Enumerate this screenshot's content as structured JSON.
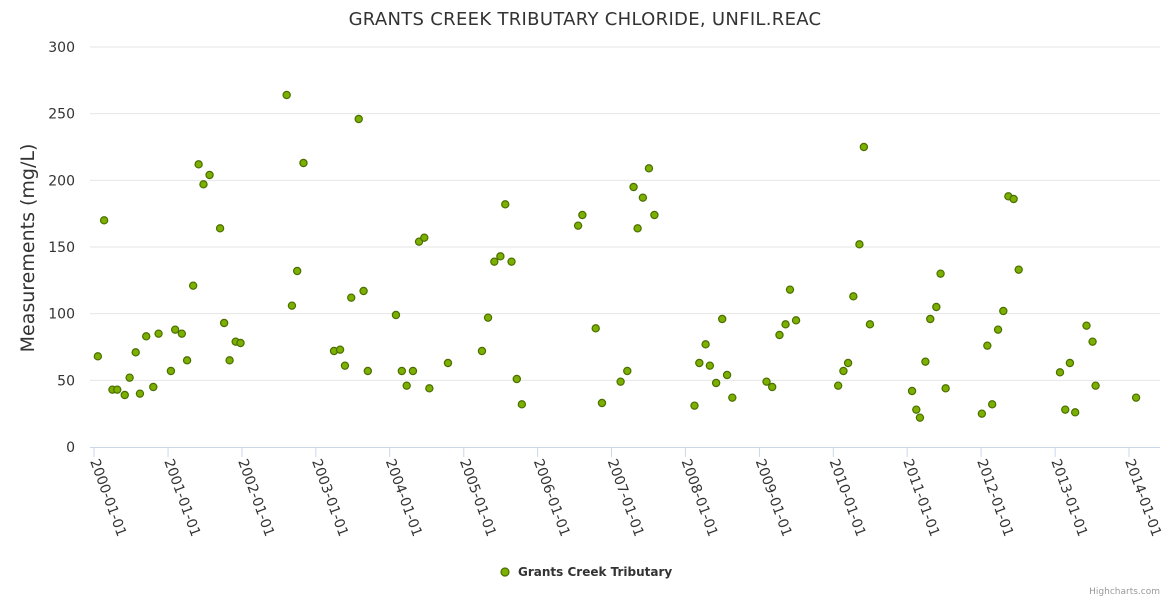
{
  "chart_data": {
    "type": "scatter",
    "title": "GRANTS CREEK TRIBUTARY CHLORIDE, UNFIL.REAC",
    "ylabel": "Measurements (mg/L)",
    "xlabel": "",
    "ylim": [
      0,
      300
    ],
    "yticks": [
      "0",
      "50",
      "100",
      "150",
      "200",
      "250",
      "300"
    ],
    "xticks": [
      "2000-01-01",
      "2001-01-01",
      "2002-01-01",
      "2003-01-01",
      "2004-01-01",
      "2005-01-01",
      "2006-01-01",
      "2007-01-01",
      "2008-01-01",
      "2009-01-01",
      "2010-01-01",
      "2011-01-01",
      "2012-01-01",
      "2013-01-01",
      "2014-01-01"
    ],
    "grid": true,
    "legend_position": "bottom-center",
    "colors": {
      "marker_fill": "#7cb000",
      "marker_stroke": "#4a6e00"
    },
    "series": [
      {
        "name": "Grants Creek Tributary",
        "points": [
          [
            "2000-01-20",
            68
          ],
          [
            "2000-02-20",
            170
          ],
          [
            "2000-04-01",
            43
          ],
          [
            "2000-04-25",
            43
          ],
          [
            "2000-06-01",
            39
          ],
          [
            "2000-06-25",
            52
          ],
          [
            "2000-07-25",
            71
          ],
          [
            "2000-08-15",
            40
          ],
          [
            "2000-09-15",
            83
          ],
          [
            "2000-10-20",
            45
          ],
          [
            "2000-11-15",
            85
          ],
          [
            "2001-01-15",
            57
          ],
          [
            "2001-02-05",
            88
          ],
          [
            "2001-03-10",
            85
          ],
          [
            "2001-04-05",
            65
          ],
          [
            "2001-05-05",
            121
          ],
          [
            "2001-06-01",
            212
          ],
          [
            "2001-06-25",
            197
          ],
          [
            "2001-07-25",
            204
          ],
          [
            "2001-09-15",
            164
          ],
          [
            "2001-10-05",
            93
          ],
          [
            "2001-11-01",
            65
          ],
          [
            "2001-12-01",
            79
          ],
          [
            "2001-12-25",
            78
          ],
          [
            "2002-08-10",
            264
          ],
          [
            "2002-09-05",
            106
          ],
          [
            "2002-10-01",
            132
          ],
          [
            "2002-11-01",
            213
          ],
          [
            "2003-04-01",
            72
          ],
          [
            "2003-05-01",
            73
          ],
          [
            "2003-05-25",
            61
          ],
          [
            "2003-06-25",
            112
          ],
          [
            "2003-08-01",
            246
          ],
          [
            "2003-08-25",
            117
          ],
          [
            "2003-09-15",
            57
          ],
          [
            "2004-02-01",
            99
          ],
          [
            "2004-03-01",
            57
          ],
          [
            "2004-03-25",
            46
          ],
          [
            "2004-04-25",
            57
          ],
          [
            "2004-05-25",
            154
          ],
          [
            "2004-06-20",
            157
          ],
          [
            "2004-07-15",
            44
          ],
          [
            "2004-10-15",
            63
          ],
          [
            "2005-04-01",
            72
          ],
          [
            "2005-05-01",
            97
          ],
          [
            "2005-06-01",
            139
          ],
          [
            "2005-07-01",
            143
          ],
          [
            "2005-07-25",
            182
          ],
          [
            "2005-08-25",
            139
          ],
          [
            "2005-09-20",
            51
          ],
          [
            "2005-10-15",
            32
          ],
          [
            "2006-07-20",
            166
          ],
          [
            "2006-08-10",
            174
          ],
          [
            "2006-10-15",
            89
          ],
          [
            "2006-11-15",
            33
          ],
          [
            "2007-02-15",
            49
          ],
          [
            "2007-03-20",
            57
          ],
          [
            "2007-04-20",
            195
          ],
          [
            "2007-05-10",
            164
          ],
          [
            "2007-06-05",
            187
          ],
          [
            "2007-07-05",
            209
          ],
          [
            "2007-08-01",
            174
          ],
          [
            "2008-02-15",
            31
          ],
          [
            "2008-03-10",
            63
          ],
          [
            "2008-04-10",
            77
          ],
          [
            "2008-05-01",
            61
          ],
          [
            "2008-06-01",
            48
          ],
          [
            "2008-07-01",
            96
          ],
          [
            "2008-07-25",
            54
          ],
          [
            "2008-08-20",
            37
          ],
          [
            "2009-02-05",
            49
          ],
          [
            "2009-03-05",
            45
          ],
          [
            "2009-04-10",
            84
          ],
          [
            "2009-05-10",
            92
          ],
          [
            "2009-06-01",
            118
          ],
          [
            "2009-07-01",
            95
          ],
          [
            "2010-01-25",
            46
          ],
          [
            "2010-02-20",
            57
          ],
          [
            "2010-03-15",
            63
          ],
          [
            "2010-04-10",
            113
          ],
          [
            "2010-05-10",
            152
          ],
          [
            "2010-06-01",
            225
          ],
          [
            "2010-07-01",
            92
          ],
          [
            "2011-01-25",
            42
          ],
          [
            "2011-02-15",
            28
          ],
          [
            "2011-03-05",
            22
          ],
          [
            "2011-04-01",
            64
          ],
          [
            "2011-04-25",
            96
          ],
          [
            "2011-05-25",
            105
          ],
          [
            "2011-06-15",
            130
          ],
          [
            "2011-07-10",
            44
          ],
          [
            "2012-01-05",
            25
          ],
          [
            "2012-02-01",
            76
          ],
          [
            "2012-02-25",
            32
          ],
          [
            "2012-03-25",
            88
          ],
          [
            "2012-04-20",
            102
          ],
          [
            "2012-05-15",
            188
          ],
          [
            "2012-06-10",
            186
          ],
          [
            "2012-07-05",
            133
          ],
          [
            "2013-01-25",
            56
          ],
          [
            "2013-02-20",
            28
          ],
          [
            "2013-03-15",
            63
          ],
          [
            "2013-04-10",
            26
          ],
          [
            "2013-06-05",
            91
          ],
          [
            "2013-07-05",
            79
          ],
          [
            "2013-07-20",
            46
          ],
          [
            "2014-02-05",
            37
          ]
        ]
      }
    ]
  },
  "credits": "Highcharts.com"
}
